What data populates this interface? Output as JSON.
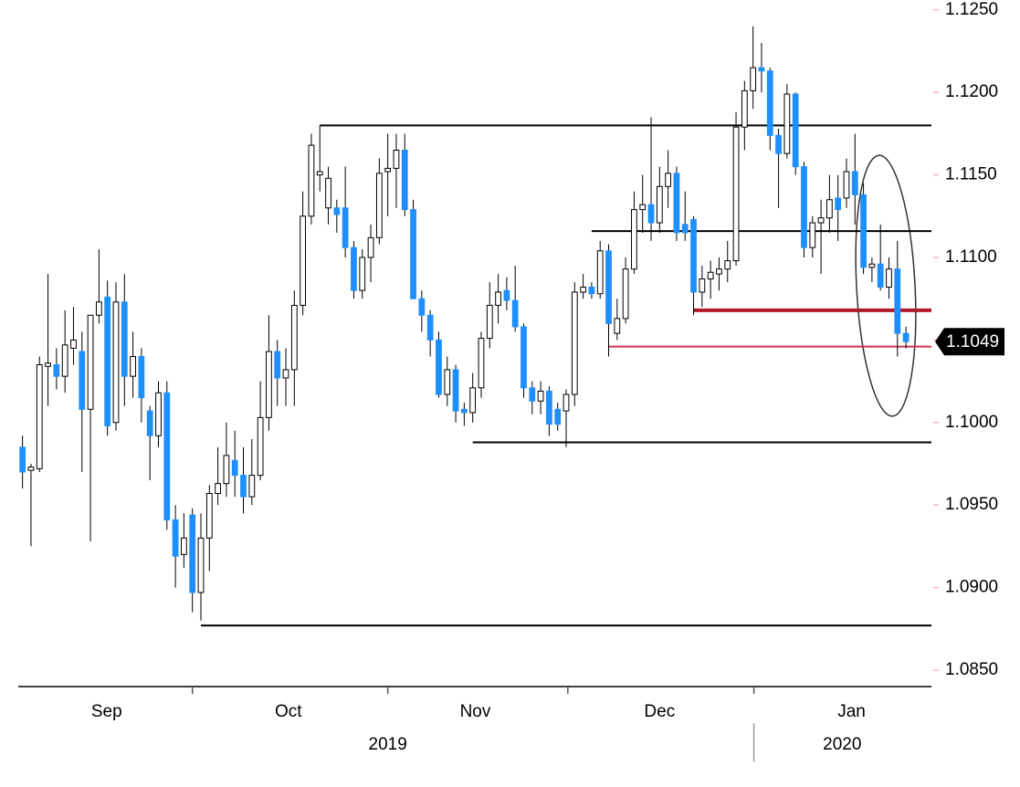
{
  "chart_data": {
    "type": "candlestick",
    "open": [
      1.0985,
      1.0971,
      1.0972,
      1.1034,
      1.1035,
      1.1028,
      1.1045,
      1.1043,
      1.1008,
      1.1065,
      1.1076,
      1.1,
      1.1073,
      1.1028,
      1.104,
      1.1007,
      1.0992,
      1.1018,
      1.0941,
      1.092,
      1.0944,
      1.0897,
      1.093,
      1.0957,
      1.0963,
      1.0977,
      1.0968,
      1.0955,
      1.0968,
      1.1003,
      1.1043,
      1.1027,
      1.1032,
      1.1071,
      1.1125,
      1.115,
      1.113,
      1.113,
      1.113,
      1.1106,
      1.108,
      1.11,
      1.1112,
      1.1152,
      1.1154,
      1.1165,
      1.1129,
      1.1075,
      1.1065,
      1.105,
      1.1017,
      1.1032,
      1.1008,
      1.1006,
      1.1021,
      1.1051,
      1.1071,
      1.108,
      1.1074,
      1.1058,
      1.1021,
      1.1013,
      1.1019,
      1.1008,
      1.1007,
      1.1017,
      1.1079,
      1.1082,
      1.1078,
      1.1104,
      1.1054,
      1.1063,
      1.1093,
      1.1129,
      1.1132,
      1.1121,
      1.1143,
      1.1151,
      1.112,
      1.1123,
      1.1079,
      1.1087,
      1.109,
      1.1093,
      1.1098,
      1.1179,
      1.1201,
      1.1215,
      1.1213,
      1.1174,
      1.1163,
      1.1199,
      1.1155,
      1.1106,
      1.1121,
      1.1124,
      1.1136,
      1.1136,
      1.1152,
      1.1138,
      1.1094,
      1.1096,
      1.1082,
      1.1093,
      1.1054
    ],
    "high": [
      1.0992,
      1.0975,
      1.104,
      1.109,
      1.1045,
      1.1068,
      1.107,
      1.1055,
      1.1065,
      1.1105,
      1.1086,
      1.1085,
      1.109,
      1.1055,
      1.1045,
      1.101,
      1.1025,
      1.1025,
      1.095,
      1.0945,
      1.0948,
      1.0945,
      1.0962,
      1.0985,
      1.1,
      1.0995,
      1.0985,
      1.099,
      1.1025,
      1.1065,
      1.105,
      1.1045,
      1.108,
      1.114,
      1.1175,
      1.118,
      1.1155,
      1.1135,
      1.1155,
      1.111,
      1.1105,
      1.112,
      1.116,
      1.1175,
      1.1175,
      1.1175,
      1.1135,
      1.108,
      1.1068,
      1.1055,
      1.104,
      1.1035,
      1.1012,
      1.103,
      1.1055,
      1.1085,
      1.109,
      1.1088,
      1.1095,
      1.106,
      1.1025,
      1.1025,
      1.1022,
      1.1012,
      1.102,
      1.1085,
      1.109,
      1.1085,
      1.111,
      1.1108,
      1.1075,
      1.11,
      1.114,
      1.115,
      1.1185,
      1.1155,
      1.1165,
      1.1155,
      1.114,
      1.1125,
      1.1095,
      1.1098,
      1.11,
      1.111,
      1.1188,
      1.1207,
      1.124,
      1.123,
      1.1215,
      1.1178,
      1.1205,
      1.12,
      1.1158,
      1.1125,
      1.1135,
      1.115,
      1.115,
      1.116,
      1.1175,
      1.1145,
      1.11,
      1.112,
      1.11,
      1.111,
      1.1058
    ],
    "low": [
      1.096,
      1.0925,
      1.097,
      1.101,
      1.102,
      1.1018,
      1.1035,
      1.097,
      1.0928,
      1.106,
      1.0992,
      1.0995,
      1.101,
      1.1015,
      1.1,
      1.0965,
      1.0985,
      1.0935,
      1.09,
      1.0912,
      1.0885,
      1.088,
      1.091,
      1.095,
      1.0955,
      1.0955,
      1.0945,
      1.095,
      1.0965,
      1.0995,
      1.101,
      1.101,
      1.101,
      1.1065,
      1.112,
      1.114,
      1.112,
      1.1115,
      1.11,
      1.1075,
      1.1075,
      1.1085,
      1.1108,
      1.1125,
      1.113,
      1.1125,
      1.1075,
      1.1055,
      1.104,
      1.1015,
      1.101,
      1.1,
      1.0998,
      1.1,
      1.1015,
      1.1045,
      1.106,
      1.1068,
      1.1055,
      1.1015,
      1.1005,
      1.1005,
      1.0992,
      1.0995,
      1.0985,
      1.101,
      1.1075,
      1.1075,
      1.1075,
      1.104,
      1.105,
      1.106,
      1.109,
      1.1115,
      1.111,
      1.1115,
      1.113,
      1.111,
      1.111,
      1.1065,
      1.107,
      1.1075,
      1.108,
      1.1085,
      1.1095,
      1.1165,
      1.119,
      1.12,
      1.1165,
      1.113,
      1.116,
      1.115,
      1.11,
      1.11,
      1.109,
      1.1115,
      1.111,
      1.113,
      1.112,
      1.109,
      1.1085,
      1.108,
      1.1075,
      1.104,
      1.1045
    ],
    "close": [
      1.097,
      1.0973,
      1.1035,
      1.1036,
      1.1028,
      1.1047,
      1.105,
      1.1008,
      1.1065,
      1.1073,
      1.0998,
      1.1073,
      1.1028,
      1.104,
      1.1015,
      1.0992,
      1.1018,
      1.0941,
      1.0919,
      1.093,
      1.0897,
      1.093,
      1.0957,
      1.0963,
      1.098,
      1.0968,
      1.0955,
      1.0968,
      1.1003,
      1.1043,
      1.1027,
      1.1032,
      1.1071,
      1.1125,
      1.1168,
      1.1152,
      1.1148,
      1.1126,
      1.1106,
      1.108,
      1.11,
      1.1112,
      1.1151,
      1.1154,
      1.1165,
      1.1129,
      1.1075,
      1.1065,
      1.105,
      1.1017,
      1.1032,
      1.1007,
      1.1006,
      1.1021,
      1.1051,
      1.1071,
      1.1079,
      1.1074,
      1.1058,
      1.1021,
      1.1013,
      1.1019,
      1.0999,
      1.0999,
      1.1017,
      1.1079,
      1.1082,
      1.1078,
      1.1104,
      1.106,
      1.1063,
      1.1093,
      1.1129,
      1.1132,
      1.1121,
      1.1143,
      1.1151,
      1.1115,
      1.1115,
      1.1079,
      1.1087,
      1.1091,
      1.1093,
      1.1098,
      1.1179,
      1.1201,
      1.1215,
      1.1213,
      1.1174,
      1.1163,
      1.1199,
      1.1155,
      1.1106,
      1.1121,
      1.1124,
      1.1135,
      1.1129,
      1.1152,
      1.1138,
      1.1094,
      1.1096,
      1.1082,
      1.1093,
      1.1054,
      1.1049
    ],
    "up_color": "#ffffff",
    "down_color": "#1e8fff",
    "levels": [
      {
        "value": 1.118,
        "from": 35,
        "color": "#000000",
        "width": 2
      },
      {
        "value": 1.1116,
        "from": 67,
        "color": "#000000",
        "width": 2
      },
      {
        "value": 1.1068,
        "from": 79,
        "color": "#b0182c",
        "width": 4
      },
      {
        "value": 1.1046,
        "from": 69,
        "color": "#d0334c",
        "width": 2
      },
      {
        "value": 1.0988,
        "from": 53,
        "color": "#000000",
        "width": 2
      },
      {
        "value": 1.0877,
        "from": 21,
        "color": "#000000",
        "width": 2
      }
    ],
    "last_price": 1.1049,
    "xlim": [
      -0.5,
      107
    ],
    "ylim": [
      1.084,
      1.1256
    ],
    "yticks": [
      {
        "value": 1.085,
        "label": "1.0850"
      },
      {
        "value": 1.09,
        "label": "1.0900"
      },
      {
        "value": 1.095,
        "label": "1.0950"
      },
      {
        "value": 1.1,
        "label": "1.1000"
      },
      {
        "value": 1.105,
        "label": "1.1050"
      },
      {
        "value": 1.11,
        "label": "1.1100"
      },
      {
        "value": 1.115,
        "label": "1.1150"
      },
      {
        "value": 1.12,
        "label": "1.1200"
      },
      {
        "value": 1.125,
        "label": "1.1250"
      }
    ],
    "xticks": [
      {
        "value": 9.9,
        "label": "Sep"
      },
      {
        "value": 31.3,
        "label": "Oct"
      },
      {
        "value": 53.3,
        "label": "Nov"
      },
      {
        "value": 75,
        "label": "Dec"
      },
      {
        "value": 97.6,
        "label": "Jan"
      }
    ],
    "month_bounds": [
      20,
      43,
      64.2,
      86.1
    ],
    "years": [
      {
        "value": 43,
        "label": "2019"
      },
      {
        "value": 96.5,
        "label": "2020"
      }
    ],
    "year_bounds": [
      86.1
    ]
  }
}
